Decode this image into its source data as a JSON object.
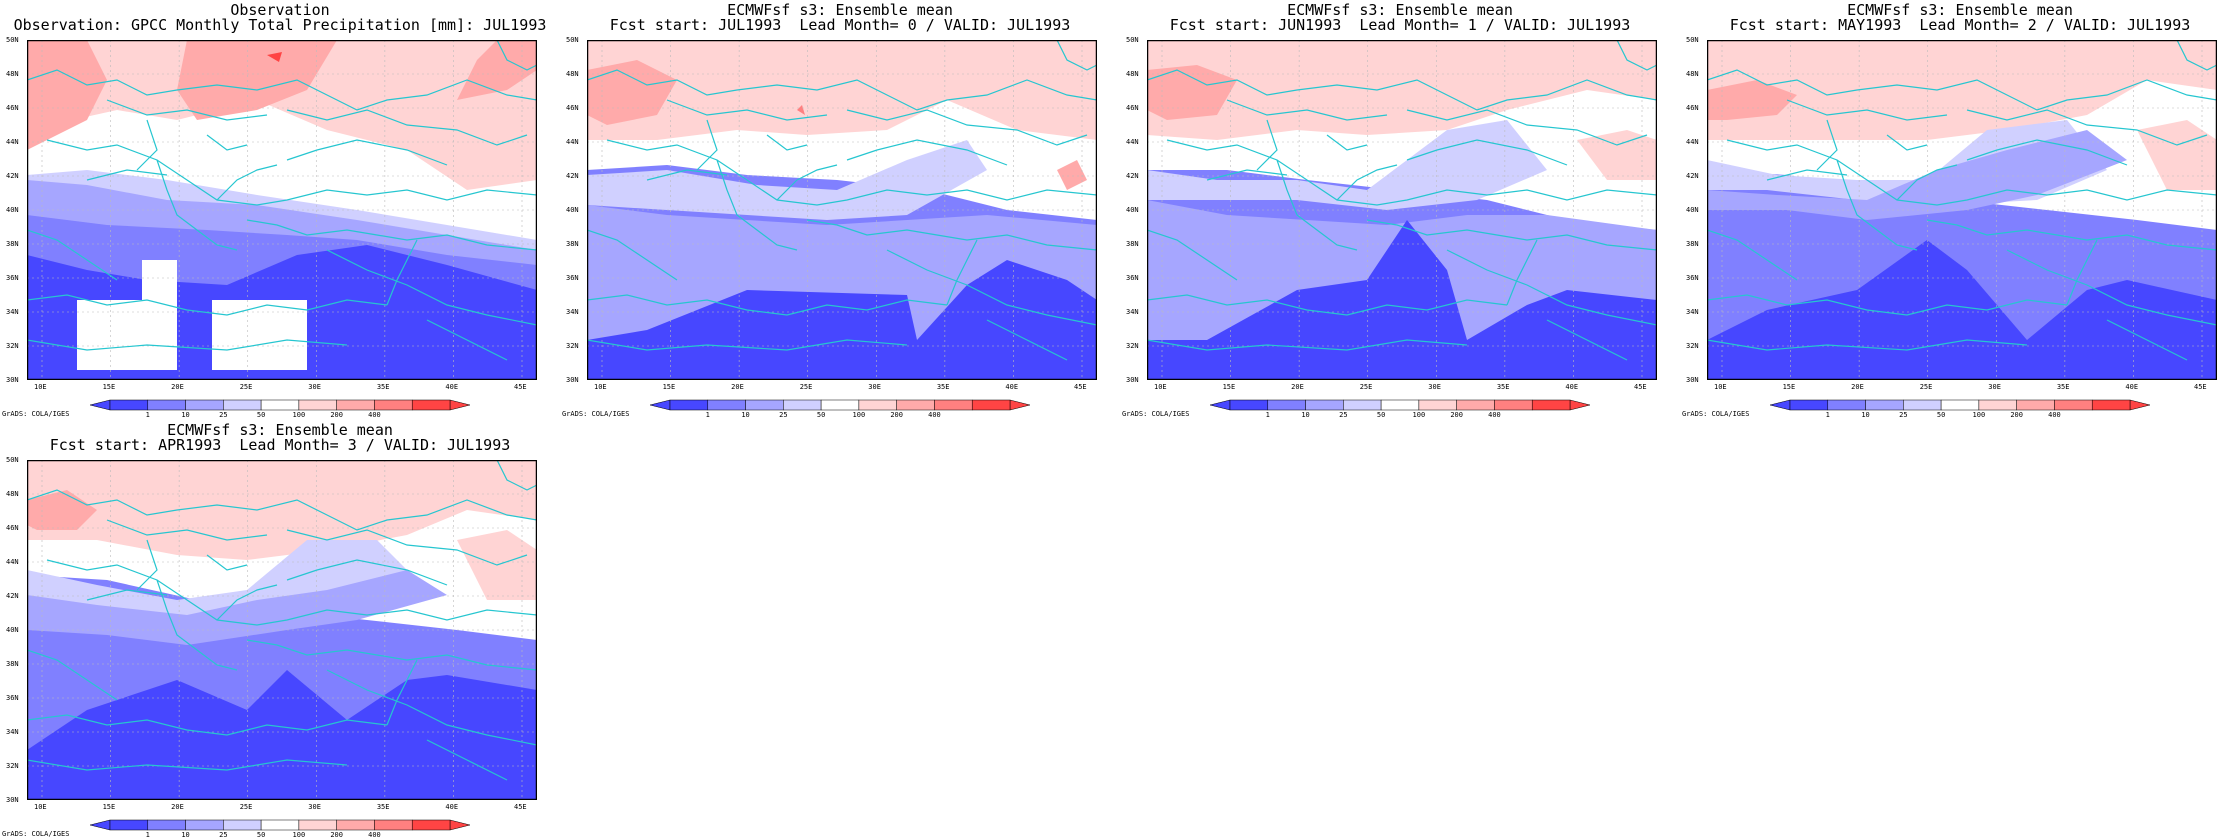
{
  "panels": [
    {
      "title1": "Observation",
      "title2": "Observation: GPCC Monthly Total Precipitation [mm]: JUL1993",
      "variant": "obs"
    },
    {
      "title1": "ECMWFsf s3: Ensemble mean",
      "title2": "Fcst start: JUL1993  Lead Month= 0 / VALID: JUL1993",
      "variant": "lead0"
    },
    {
      "title1": "ECMWFsf s3: Ensemble mean",
      "title2": "Fcst start: JUN1993  Lead Month= 1 / VALID: JUL1993",
      "variant": "lead1"
    },
    {
      "title1": "ECMWFsf s3: Ensemble mean",
      "title2": "Fcst start: MAY1993  Lead Month= 2 / VALID: JUL1993",
      "variant": "lead2"
    },
    {
      "title1": "ECMWFsf s3: Ensemble mean",
      "title2": "Fcst start: APR1993  Lead Month= 3 / VALID: JUL1993",
      "variant": "lead3"
    }
  ],
  "lat_ticks": [
    "50N",
    "48N",
    "46N",
    "44N",
    "42N",
    "40N",
    "38N",
    "36N",
    "34N",
    "32N",
    "30N"
  ],
  "lon_ticks": [
    "10E",
    "15E",
    "20E",
    "25E",
    "30E",
    "35E",
    "40E",
    "45E"
  ],
  "colorbar": {
    "labels": [
      "1",
      "10",
      "25",
      "50",
      "100",
      "200",
      "400"
    ],
    "colors": [
      "#4747ff",
      "#8080ff",
      "#a6a6ff",
      "#d0d0ff",
      "#ffffff",
      "#ffd4d4",
      "#ffaaaa",
      "#ff8080",
      "#ff4444"
    ]
  },
  "grads_credit": "GrADS: COLA/IGES",
  "colors": {
    "coast": "#26c6d0",
    "grid": "#bbbbbb",
    "frame": "#000000"
  }
}
